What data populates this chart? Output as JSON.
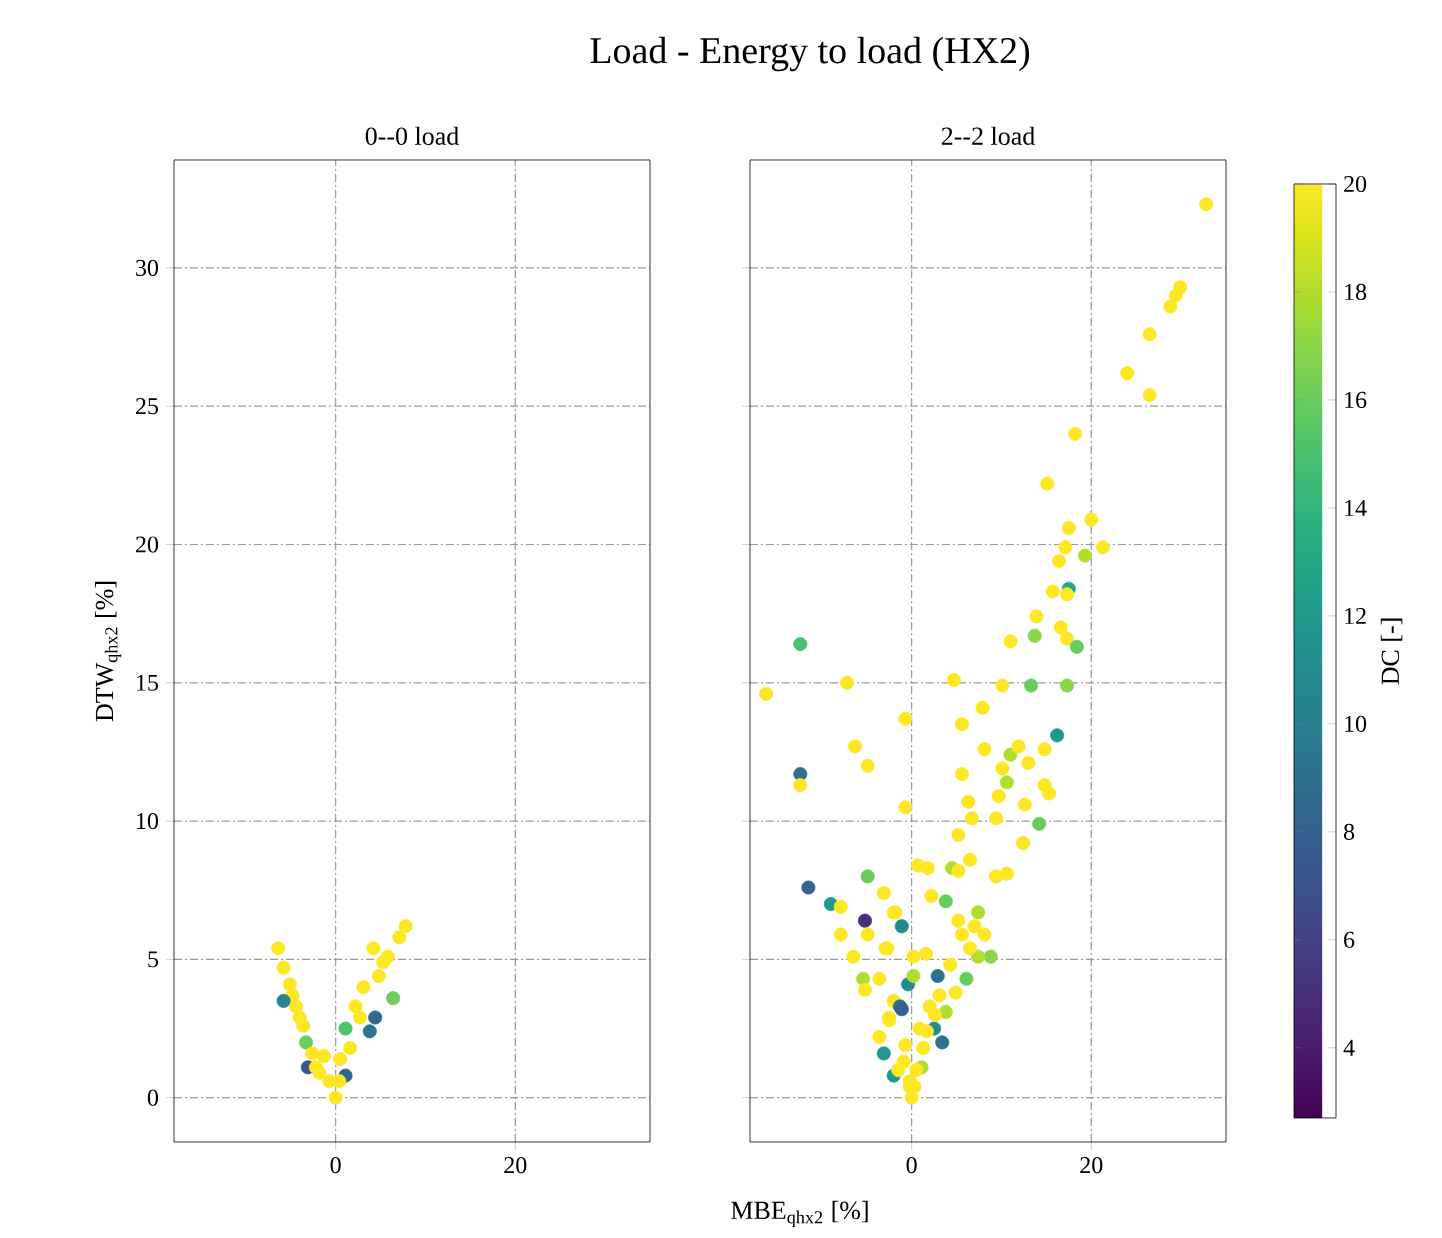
{
  "chart_data": [
    {
      "type": "scatter",
      "subtitle": "0--0 load",
      "ylabel": "DTW$_{qhx2}$ [%]",
      "xlim": [
        -18,
        35
      ],
      "ylim": [
        -1.6,
        33.9
      ],
      "xticks": [
        0,
        20
      ],
      "yticks": [
        0,
        5,
        10,
        15,
        20,
        25,
        30
      ],
      "grid": true,
      "marker": "circle",
      "x": [
        -6.4,
        -5.8,
        -5.1,
        -4.8,
        -4.4,
        -4.0,
        -3.6,
        -5.8,
        -3.1,
        -3.3,
        -2.6,
        -2.2,
        -1.3,
        -0.7,
        0.0,
        7.8,
        7.1,
        4.2,
        5.3,
        6.4,
        4.4,
        3.8,
        1.1,
        3.1,
        2.2,
        1.6,
        1.1,
        2.7,
        4.8,
        5.8,
        0.4,
        0.5,
        -1.8
      ],
      "values": [
        5.4,
        4.7,
        4.1,
        3.7,
        3.3,
        2.9,
        2.6,
        3.5,
        1.1,
        2.0,
        1.6,
        1.1,
        1.5,
        0.6,
        0.0,
        6.2,
        5.8,
        5.4,
        4.9,
        3.6,
        2.9,
        2.4,
        2.5,
        4.0,
        3.3,
        1.8,
        0.8,
        2.9,
        4.4,
        5.1,
        0.6,
        1.4,
        0.9
      ],
      "colors": [
        "#fde725",
        "#fde725",
        "#fde725",
        "#fde725",
        "#fde725",
        "#fde725",
        "#fde725",
        "#25858e",
        "#38588c",
        "#6ccd5a",
        "#fde725",
        "#fde725",
        "#fde725",
        "#fde725",
        "#fde725",
        "#fde725",
        "#fde725",
        "#fde725",
        "#fde725",
        "#6ccd5a",
        "#31688e",
        "#2c738e",
        "#4ec36b",
        "#fde725",
        "#fde725",
        "#fde725",
        "#31688e",
        "#fde725",
        "#fde725",
        "#fde725",
        "#fde725",
        "#fde725",
        "#fde725"
      ]
    },
    {
      "type": "scatter",
      "title": "Load - Energy to load (HX2)",
      "subtitle": "2--2 load",
      "xlabel": "MBE$_{qhx2}$ [%]",
      "xlim": [
        -18,
        35
      ],
      "ylim": [
        -1.6,
        33.9
      ],
      "xticks": [
        0,
        20
      ],
      "yticks": [
        0,
        5,
        10,
        15,
        20,
        25,
        30
      ],
      "tick_labels": "x",
      "grid": true,
      "marker": "circle",
      "clabel": "DC [-]",
      "clim": [
        2.7,
        20
      ],
      "cticks": [
        4,
        6,
        8,
        10,
        12,
        14,
        16,
        18,
        20
      ],
      "x": [
        32.8,
        29.9,
        29.4,
        28.8,
        26.5,
        26.5,
        24.0,
        18.2,
        15.1,
        20.0,
        17.5,
        17.1,
        19.3,
        21.3,
        16.4,
        17.5,
        15.7,
        17.3,
        13.9,
        16.6,
        11.0,
        13.7,
        17.3,
        18.4,
        4.7,
        10.1,
        13.3,
        17.3,
        -0.7,
        7.9,
        5.6,
        16.2,
        8.1,
        11.0,
        11.9,
        13.0,
        14.8,
        10.1,
        5.6,
        10.6,
        14.8,
        9.7,
        6.3,
        12.6,
        15.3,
        -0.7,
        6.7,
        9.4,
        14.2,
        5.2,
        12.4,
        0.7,
        1.8,
        6.5,
        4.5,
        5.2,
        9.4,
        10.6,
        2.2,
        3.8,
        7.4,
        5.2,
        7.0,
        8.1,
        5.6,
        -2.0,
        -1.1,
        -2.9,
        8.8,
        7.4,
        6.5,
        0.2,
        1.6,
        2.9,
        4.3,
        6.1,
        -0.4,
        0.2,
        4.9,
        3.1,
        -2.0,
        -1.3,
        2.0,
        3.8,
        -2.5,
        0.9,
        2.5,
        3.4,
        -0.7,
        1.1,
        -2.0,
        -0.2,
        0.0,
        -12.4,
        -16.2,
        -7.2,
        -6.3,
        -4.9,
        -12.4,
        -12.4,
        -11.5,
        -4.9,
        -9.0,
        -7.9,
        -3.1,
        -5.2,
        -4.9,
        -1.8,
        -7.9,
        -2.7,
        -6.5,
        -5.4,
        -5.2,
        -3.6,
        -1.1,
        -2.5,
        -3.6,
        -3.1,
        -0.9,
        -0.2,
        1.3,
        0.5,
        0.3,
        -1.5,
        2.6,
        1.7
      ],
      "values": [
        32.3,
        29.3,
        29.0,
        28.6,
        27.6,
        25.4,
        26.2,
        24.0,
        22.2,
        20.9,
        20.6,
        19.9,
        19.6,
        19.9,
        19.4,
        18.4,
        18.3,
        18.2,
        17.4,
        17.0,
        16.5,
        16.7,
        16.6,
        16.3,
        15.1,
        14.9,
        14.9,
        14.9,
        13.7,
        14.1,
        13.5,
        13.1,
        12.6,
        12.4,
        12.7,
        12.1,
        12.6,
        11.9,
        11.7,
        11.4,
        11.3,
        10.9,
        10.7,
        10.6,
        11.0,
        10.5,
        10.1,
        10.1,
        9.9,
        9.5,
        9.2,
        8.4,
        8.3,
        8.6,
        8.3,
        8.2,
        8.0,
        8.1,
        7.3,
        7.1,
        6.7,
        6.4,
        6.2,
        5.9,
        5.9,
        6.7,
        6.2,
        5.4,
        5.1,
        5.1,
        5.4,
        5.1,
        5.2,
        4.4,
        4.8,
        4.3,
        4.1,
        4.4,
        3.8,
        3.7,
        3.5,
        3.3,
        3.3,
        3.1,
        2.9,
        2.5,
        2.5,
        2.0,
        1.9,
        1.1,
        0.8,
        0.4,
        0.0,
        16.4,
        14.6,
        15.0,
        12.7,
        12.0,
        11.7,
        11.3,
        7.6,
        8.0,
        7.0,
        6.9,
        7.4,
        6.4,
        5.9,
        6.7,
        5.9,
        5.4,
        5.1,
        4.3,
        3.9,
        4.3,
        3.2,
        2.8,
        2.2,
        1.6,
        1.3,
        0.6,
        1.8,
        1.0,
        0.4,
        1.0,
        3.0,
        2.4
      ],
      "cvalues": [
        20,
        20,
        20,
        20,
        20,
        20,
        20,
        20,
        20,
        20,
        20,
        20,
        18,
        20,
        20,
        13,
        20,
        20,
        20,
        20,
        20,
        17,
        20,
        16,
        20,
        20,
        16,
        17,
        20,
        20,
        20,
        12,
        20,
        18,
        20,
        20,
        20,
        20,
        20,
        18,
        20,
        20,
        20,
        20,
        20,
        20,
        20,
        20,
        16,
        20,
        20,
        20,
        20,
        20,
        18,
        20,
        20,
        20,
        20,
        16,
        18,
        20,
        20,
        20,
        20,
        20,
        11,
        20,
        17,
        18,
        20,
        20,
        20,
        9,
        20,
        16,
        11,
        18,
        20,
        20,
        20,
        9,
        20,
        18,
        20,
        20,
        11,
        9,
        20,
        18,
        12,
        20,
        20,
        15,
        20,
        20,
        20,
        20,
        9,
        20,
        8,
        16,
        12,
        20,
        20,
        5,
        20,
        20,
        20,
        20,
        20,
        18,
        20,
        20,
        8,
        20,
        20,
        12,
        20,
        20,
        20,
        20,
        20,
        20,
        20,
        20
      ]
    }
  ]
}
